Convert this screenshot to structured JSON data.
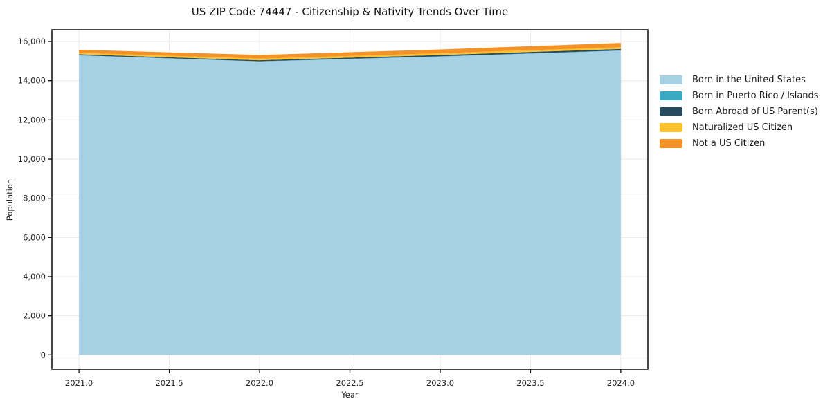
{
  "title": "US ZIP Code 74447 - Citizenship & Nativity Trends Over Time",
  "chart_data": {
    "type": "area",
    "stacked": true,
    "title": "US ZIP Code 74447 - Citizenship & Nativity Trends Over Time",
    "xlabel": "Year",
    "ylabel": "Population",
    "x": [
      2021,
      2022,
      2023,
      2024
    ],
    "series": [
      {
        "name": "Born in the United States",
        "color": "#a6d1e5",
        "values": [
          15290,
          14980,
          15230,
          15530
        ]
      },
      {
        "name": "Born in Puerto Rico / Islands",
        "color": "#3aa8c0",
        "values": [
          10,
          10,
          15,
          15
        ]
      },
      {
        "name": "Born Abroad of US Parent(s)",
        "color": "#264a5e",
        "values": [
          50,
          55,
          65,
          75
        ]
      },
      {
        "name": "Naturalized US Citizen",
        "color": "#fdc22d",
        "values": [
          70,
          80,
          90,
          95
        ]
      },
      {
        "name": "Not a US Citizen",
        "color": "#f59227",
        "values": [
          160,
          190,
          195,
          210
        ]
      }
    ],
    "stack_totals": [
      15580,
      15315,
      15595,
      15925
    ],
    "xticks": [
      2021.0,
      2021.5,
      2022.0,
      2022.5,
      2023.0,
      2023.5,
      2024.0
    ],
    "yticks": [
      0,
      2000,
      4000,
      6000,
      8000,
      10000,
      12000,
      14000,
      16000
    ],
    "xlim": [
      2020.85,
      2024.15
    ],
    "ylim": [
      -730,
      16600
    ],
    "grid": true,
    "legend_position": "right-outside",
    "colors": {
      "grid": "#e9e9e9",
      "spine": "#1c1c1c",
      "tick_label": "#262626",
      "background": "#ffffff"
    }
  }
}
